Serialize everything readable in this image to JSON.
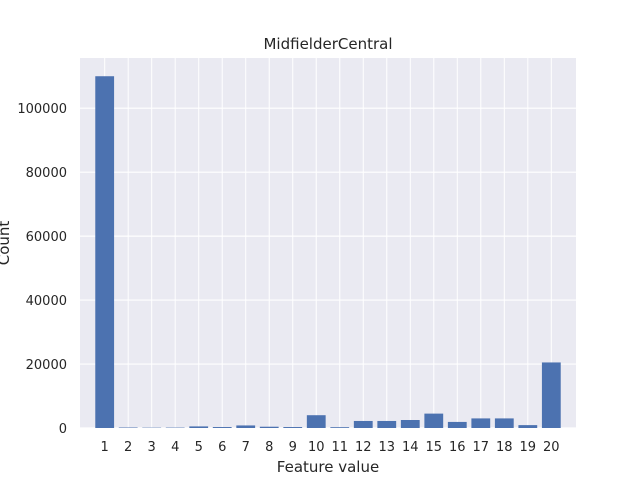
{
  "chart_data": {
    "type": "bar",
    "title": "MidfielderCentral",
    "xlabel": "Feature value",
    "ylabel": "Count",
    "categories": [
      "1",
      "2",
      "3",
      "4",
      "5",
      "6",
      "7",
      "8",
      "9",
      "10",
      "11",
      "12",
      "13",
      "14",
      "15",
      "16",
      "17",
      "18",
      "19",
      "20"
    ],
    "values": [
      110000,
      150,
      100,
      120,
      500,
      300,
      800,
      400,
      300,
      4000,
      250,
      2200,
      2200,
      2500,
      4500,
      1900,
      3000,
      3000,
      900,
      20500
    ],
    "yticks": [
      0,
      20000,
      40000,
      60000,
      80000,
      100000
    ],
    "ylim": [
      0,
      115700
    ],
    "grid": true,
    "colors": {
      "bar": "#4c72b0",
      "plot_bg": "#eaeaf2",
      "grid": "#ffffff",
      "text": "#262626"
    }
  }
}
